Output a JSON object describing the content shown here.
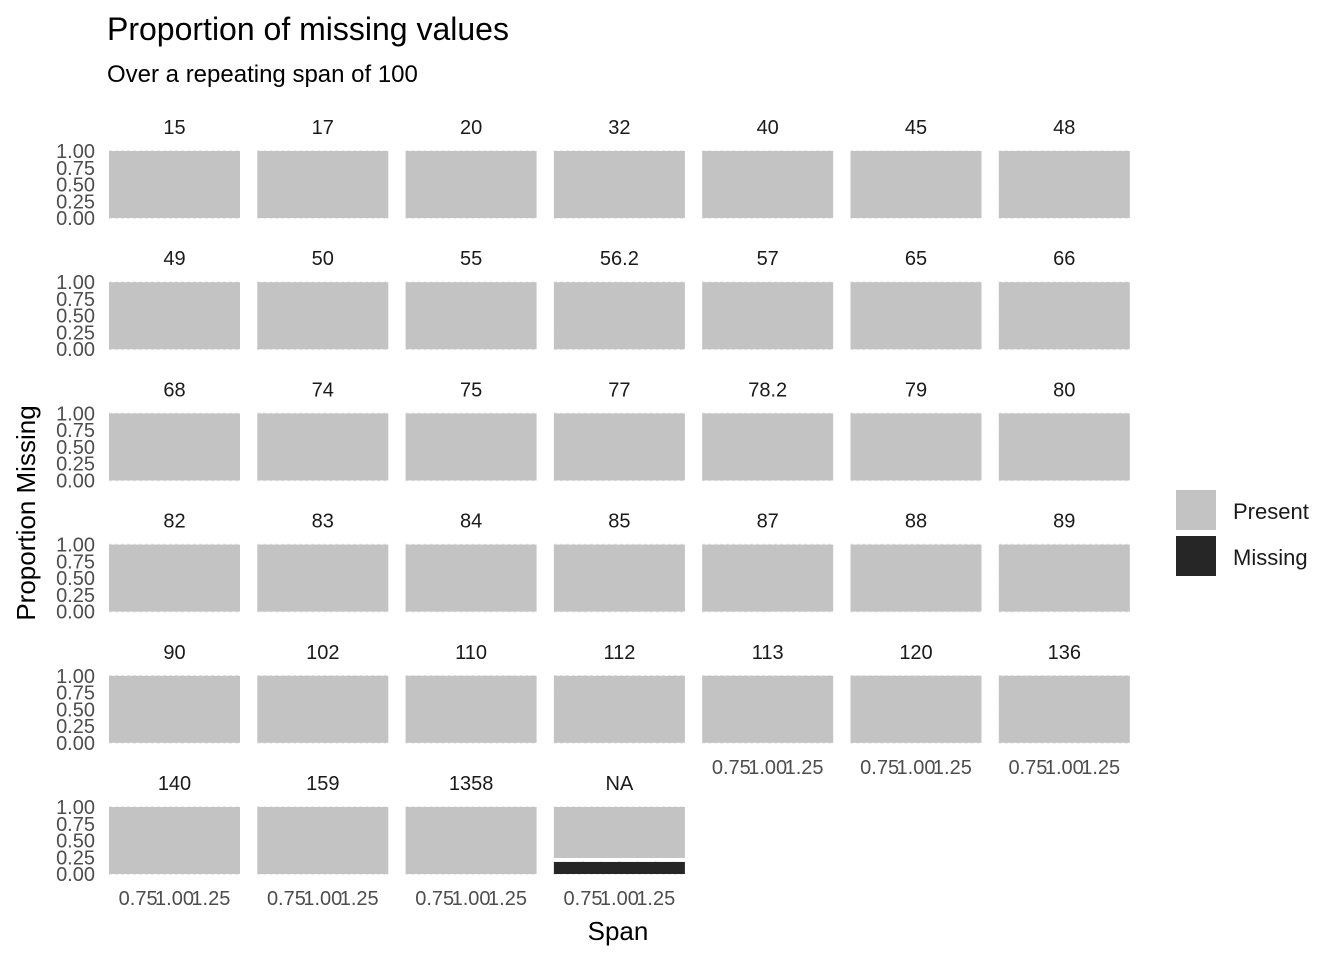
{
  "chart_data": {
    "type": "bar",
    "title": "Proportion of missing values",
    "subtitle": "Over a repeating span of 100",
    "xlabel": "Span",
    "ylabel": "Proportion Missing",
    "position": "stack",
    "facet_layout": {
      "columns": 7,
      "rows": 6
    },
    "x": 1,
    "xlim": [
      0.55,
      1.45
    ],
    "ylim": [
      0,
      1
    ],
    "x_ticks": [
      "0.75",
      "1.00",
      "1.25"
    ],
    "x_tick_values": [
      0.75,
      1.0,
      1.25
    ],
    "y_ticks": [
      "0.00",
      "0.25",
      "0.50",
      "0.75",
      "1.00"
    ],
    "y_tick_values": [
      0,
      0.25,
      0.5,
      0.75,
      1.0
    ],
    "legend": {
      "placement": "right",
      "entries": [
        {
          "name": "Present",
          "color": "#c3c3c3"
        },
        {
          "name": "Missing",
          "color": "#262626"
        }
      ]
    },
    "grid": true,
    "panels": [
      {
        "label": "15",
        "present": 1.0,
        "missing": 0.0
      },
      {
        "label": "17",
        "present": 1.0,
        "missing": 0.0
      },
      {
        "label": "20",
        "present": 1.0,
        "missing": 0.0
      },
      {
        "label": "32",
        "present": 1.0,
        "missing": 0.0
      },
      {
        "label": "40",
        "present": 1.0,
        "missing": 0.0
      },
      {
        "label": "45",
        "present": 1.0,
        "missing": 0.0
      },
      {
        "label": "48",
        "present": 1.0,
        "missing": 0.0
      },
      {
        "label": "49",
        "present": 1.0,
        "missing": 0.0
      },
      {
        "label": "50",
        "present": 1.0,
        "missing": 0.0
      },
      {
        "label": "55",
        "present": 1.0,
        "missing": 0.0
      },
      {
        "label": "56.2",
        "present": 1.0,
        "missing": 0.0
      },
      {
        "label": "57",
        "present": 1.0,
        "missing": 0.0
      },
      {
        "label": "65",
        "present": 1.0,
        "missing": 0.0
      },
      {
        "label": "66",
        "present": 1.0,
        "missing": 0.0
      },
      {
        "label": "68",
        "present": 1.0,
        "missing": 0.0
      },
      {
        "label": "74",
        "present": 1.0,
        "missing": 0.0
      },
      {
        "label": "75",
        "present": 1.0,
        "missing": 0.0
      },
      {
        "label": "77",
        "present": 1.0,
        "missing": 0.0
      },
      {
        "label": "78.2",
        "present": 1.0,
        "missing": 0.0
      },
      {
        "label": "79",
        "present": 1.0,
        "missing": 0.0
      },
      {
        "label": "80",
        "present": 1.0,
        "missing": 0.0
      },
      {
        "label": "82",
        "present": 1.0,
        "missing": 0.0
      },
      {
        "label": "83",
        "present": 1.0,
        "missing": 0.0
      },
      {
        "label": "84",
        "present": 1.0,
        "missing": 0.0
      },
      {
        "label": "85",
        "present": 1.0,
        "missing": 0.0
      },
      {
        "label": "87",
        "present": 1.0,
        "missing": 0.0
      },
      {
        "label": "88",
        "present": 1.0,
        "missing": 0.0
      },
      {
        "label": "89",
        "present": 1.0,
        "missing": 0.0
      },
      {
        "label": "90",
        "present": 1.0,
        "missing": 0.0
      },
      {
        "label": "102",
        "present": 1.0,
        "missing": 0.0
      },
      {
        "label": "110",
        "present": 1.0,
        "missing": 0.0
      },
      {
        "label": "112",
        "present": 1.0,
        "missing": 0.0
      },
      {
        "label": "113",
        "present": 1.0,
        "missing": 0.0
      },
      {
        "label": "120",
        "present": 1.0,
        "missing": 0.0
      },
      {
        "label": "136",
        "present": 1.0,
        "missing": 0.0
      },
      {
        "label": "140",
        "present": 1.0,
        "missing": 0.0
      },
      {
        "label": "159",
        "present": 1.0,
        "missing": 0.0
      },
      {
        "label": "1358",
        "present": 1.0,
        "missing": 0.0
      },
      {
        "label": "NA",
        "present": 0.82,
        "missing": 0.18
      }
    ]
  }
}
